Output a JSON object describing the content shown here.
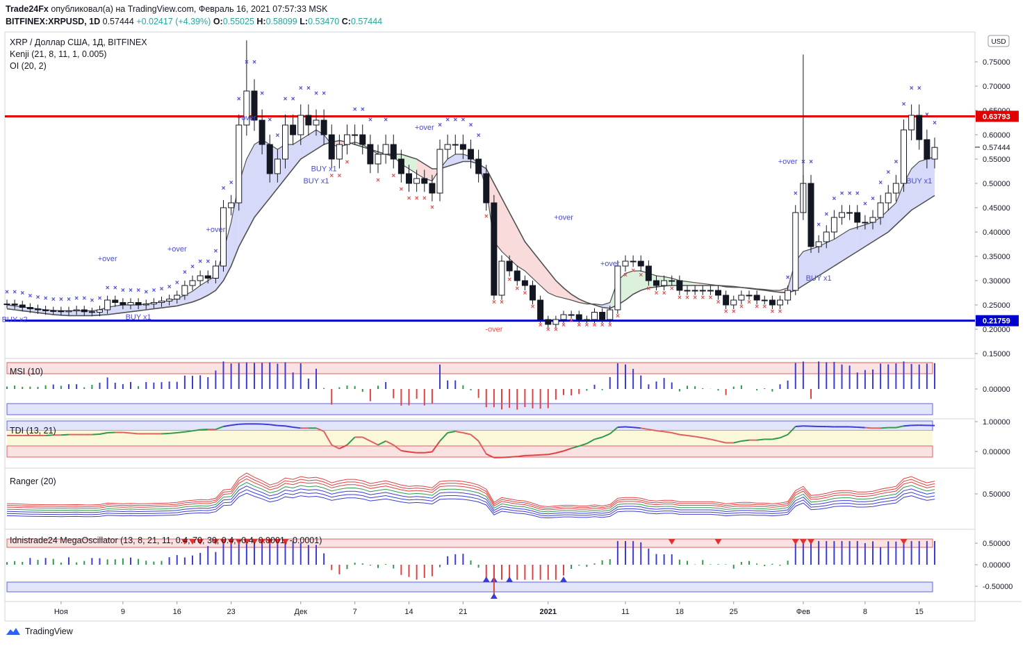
{
  "header": {
    "publisher": "Trade24Fx",
    "published_text": "опубликовал(а) на TradingView.com, Февраль 16, 2021 07:57:33 MSK",
    "symbol": "BITFINEX:XRPUSD, 1D",
    "last": "0.57444",
    "change": "+0.02417 (+4.39%)",
    "o_label": "O:",
    "o": "0.55025",
    "h_label": "H:",
    "h": "0.58099",
    "l_label": "L:",
    "l": "0.53470",
    "c_label": "C:",
    "c": "0.57444"
  },
  "legend": {
    "title": "XRP / Доллар США, 1Д, BITFINEX",
    "ind1": "Kenji (21, 8, 11, 1, 0.005)",
    "ind2": "OI (20, 2)"
  },
  "currency_badge": "USD",
  "price_axis": {
    "ticks": [
      "0.75000",
      "0.70000",
      "0.65000",
      "0.60000",
      "0.55000",
      "0.50000",
      "0.45000",
      "0.40000",
      "0.35000",
      "0.30000",
      "0.25000",
      "0.20000",
      "0.15000"
    ],
    "last_label": "0.57444",
    "resistance_label": "0.63793",
    "support_label": "0.21759"
  },
  "levels": {
    "resistance": 0.63793,
    "support": 0.21759,
    "resistance_color": "#e00000",
    "support_color": "#0000cc"
  },
  "chart_data": {
    "type": "candlestick",
    "timeframe": "1D",
    "ylim": [
      0.13,
      0.8
    ],
    "x_labels": [
      "Ноя",
      "9",
      "16",
      "23",
      "Дек",
      "7",
      "14",
      "21",
      "2021",
      "11",
      "18",
      "25",
      "Фев",
      "8",
      "15"
    ],
    "close": [
      0.252,
      0.25,
      0.245,
      0.242,
      0.24,
      0.238,
      0.238,
      0.236,
      0.238,
      0.24,
      0.236,
      0.235,
      0.24,
      0.26,
      0.255,
      0.25,
      0.255,
      0.25,
      0.252,
      0.255,
      0.258,
      0.262,
      0.27,
      0.29,
      0.3,
      0.31,
      0.305,
      0.33,
      0.45,
      0.46,
      0.62,
      0.69,
      0.63,
      0.58,
      0.52,
      0.55,
      0.62,
      0.6,
      0.64,
      0.62,
      0.63,
      0.6,
      0.55,
      0.58,
      0.6,
      0.6,
      0.58,
      0.54,
      0.56,
      0.58,
      0.55,
      0.52,
      0.5,
      0.51,
      0.5,
      0.48,
      0.57,
      0.58,
      0.58,
      0.57,
      0.55,
      0.52,
      0.46,
      0.27,
      0.34,
      0.32,
      0.3,
      0.29,
      0.26,
      0.22,
      0.21,
      0.22,
      0.23,
      0.23,
      0.22,
      0.22,
      0.235,
      0.22,
      0.24,
      0.33,
      0.34,
      0.34,
      0.33,
      0.3,
      0.29,
      0.3,
      0.3,
      0.28,
      0.28,
      0.28,
      0.28,
      0.28,
      0.27,
      0.25,
      0.26,
      0.27,
      0.27,
      0.26,
      0.26,
      0.25,
      0.26,
      0.28,
      0.44,
      0.5,
      0.37,
      0.38,
      0.4,
      0.43,
      0.44,
      0.44,
      0.42,
      0.42,
      0.43,
      0.46,
      0.48,
      0.5,
      0.61,
      0.64,
      0.59,
      0.55,
      0.574
    ],
    "kenji_upper": [
      0.25,
      0.248,
      0.246,
      0.244,
      0.242,
      0.24,
      0.239,
      0.238,
      0.238,
      0.238,
      0.238,
      0.238,
      0.24,
      0.245,
      0.248,
      0.25,
      0.25,
      0.25,
      0.252,
      0.254,
      0.256,
      0.259,
      0.263,
      0.27,
      0.278,
      0.29,
      0.3,
      0.31,
      0.36,
      0.42,
      0.5,
      0.55,
      0.58,
      0.59,
      0.58,
      0.57,
      0.58,
      0.58,
      0.59,
      0.6,
      0.61,
      0.6,
      0.58,
      0.575,
      0.58,
      0.585,
      0.58,
      0.57,
      0.56,
      0.56,
      0.555,
      0.54,
      0.53,
      0.52,
      0.51,
      0.505,
      0.53,
      0.55,
      0.56,
      0.56,
      0.555,
      0.54,
      0.49,
      0.38,
      0.36,
      0.345,
      0.33,
      0.32,
      0.305,
      0.29,
      0.275,
      0.268,
      0.264,
      0.26,
      0.255,
      0.252,
      0.252,
      0.25,
      0.255,
      0.3,
      0.315,
      0.32,
      0.32,
      0.315,
      0.31,
      0.308,
      0.305,
      0.3,
      0.298,
      0.296,
      0.294,
      0.292,
      0.29,
      0.287,
      0.286,
      0.286,
      0.285,
      0.283,
      0.282,
      0.28,
      0.28,
      0.285,
      0.34,
      0.36,
      0.365,
      0.37,
      0.378,
      0.385,
      0.395,
      0.405,
      0.41,
      0.415,
      0.42,
      0.43,
      0.445,
      0.46,
      0.5,
      0.53,
      0.545,
      0.55,
      0.555
    ],
    "kenji_lower": [
      0.242,
      0.24,
      0.238,
      0.236,
      0.234,
      0.232,
      0.23,
      0.229,
      0.228,
      0.228,
      0.228,
      0.228,
      0.229,
      0.23,
      0.232,
      0.234,
      0.236,
      0.238,
      0.24,
      0.242,
      0.244,
      0.246,
      0.248,
      0.252,
      0.256,
      0.262,
      0.27,
      0.28,
      0.3,
      0.33,
      0.37,
      0.4,
      0.43,
      0.45,
      0.47,
      0.49,
      0.51,
      0.53,
      0.55,
      0.56,
      0.57,
      0.58,
      0.585,
      0.588,
      0.585,
      0.58,
      0.575,
      0.57,
      0.565,
      0.56,
      0.56,
      0.56,
      0.555,
      0.55,
      0.54,
      0.53,
      0.53,
      0.535,
      0.54,
      0.545,
      0.545,
      0.54,
      0.53,
      0.5,
      0.47,
      0.44,
      0.41,
      0.38,
      0.36,
      0.34,
      0.32,
      0.3,
      0.285,
      0.272,
      0.262,
      0.255,
      0.25,
      0.245,
      0.243,
      0.25,
      0.26,
      0.272,
      0.28,
      0.285,
      0.287,
      0.289,
      0.29,
      0.29,
      0.29,
      0.29,
      0.29,
      0.29,
      0.29,
      0.289,
      0.288,
      0.286,
      0.284,
      0.282,
      0.28,
      0.278,
      0.276,
      0.275,
      0.28,
      0.29,
      0.3,
      0.31,
      0.32,
      0.33,
      0.34,
      0.35,
      0.36,
      0.37,
      0.38,
      0.39,
      0.4,
      0.415,
      0.43,
      0.445,
      0.455,
      0.465,
      0.475
    ],
    "panels": [
      {
        "name": "MSI (10)",
        "ticks": [
          "0.00000"
        ]
      },
      {
        "name": "TDI (13, 21)",
        "ticks": [
          "1.00000",
          "0.00000"
        ]
      },
      {
        "name": "Ranger (20)",
        "ticks": [
          "0.50000"
        ]
      },
      {
        "name": "Idnistrade24 MegaOscillator (13, 8, 21, 11, 0.4, 70, 30, 0.4, -0.4, 0.0001, -0.0001)",
        "ticks": [
          "0.50000",
          "0.00000",
          "-0.50000"
        ]
      }
    ]
  },
  "signals": {
    "over_up": "+over",
    "over_down": "-over",
    "buy_x1": "BUY x1",
    "buy_x2": "BUY x2"
  },
  "footer": {
    "brand": "TradingView"
  }
}
